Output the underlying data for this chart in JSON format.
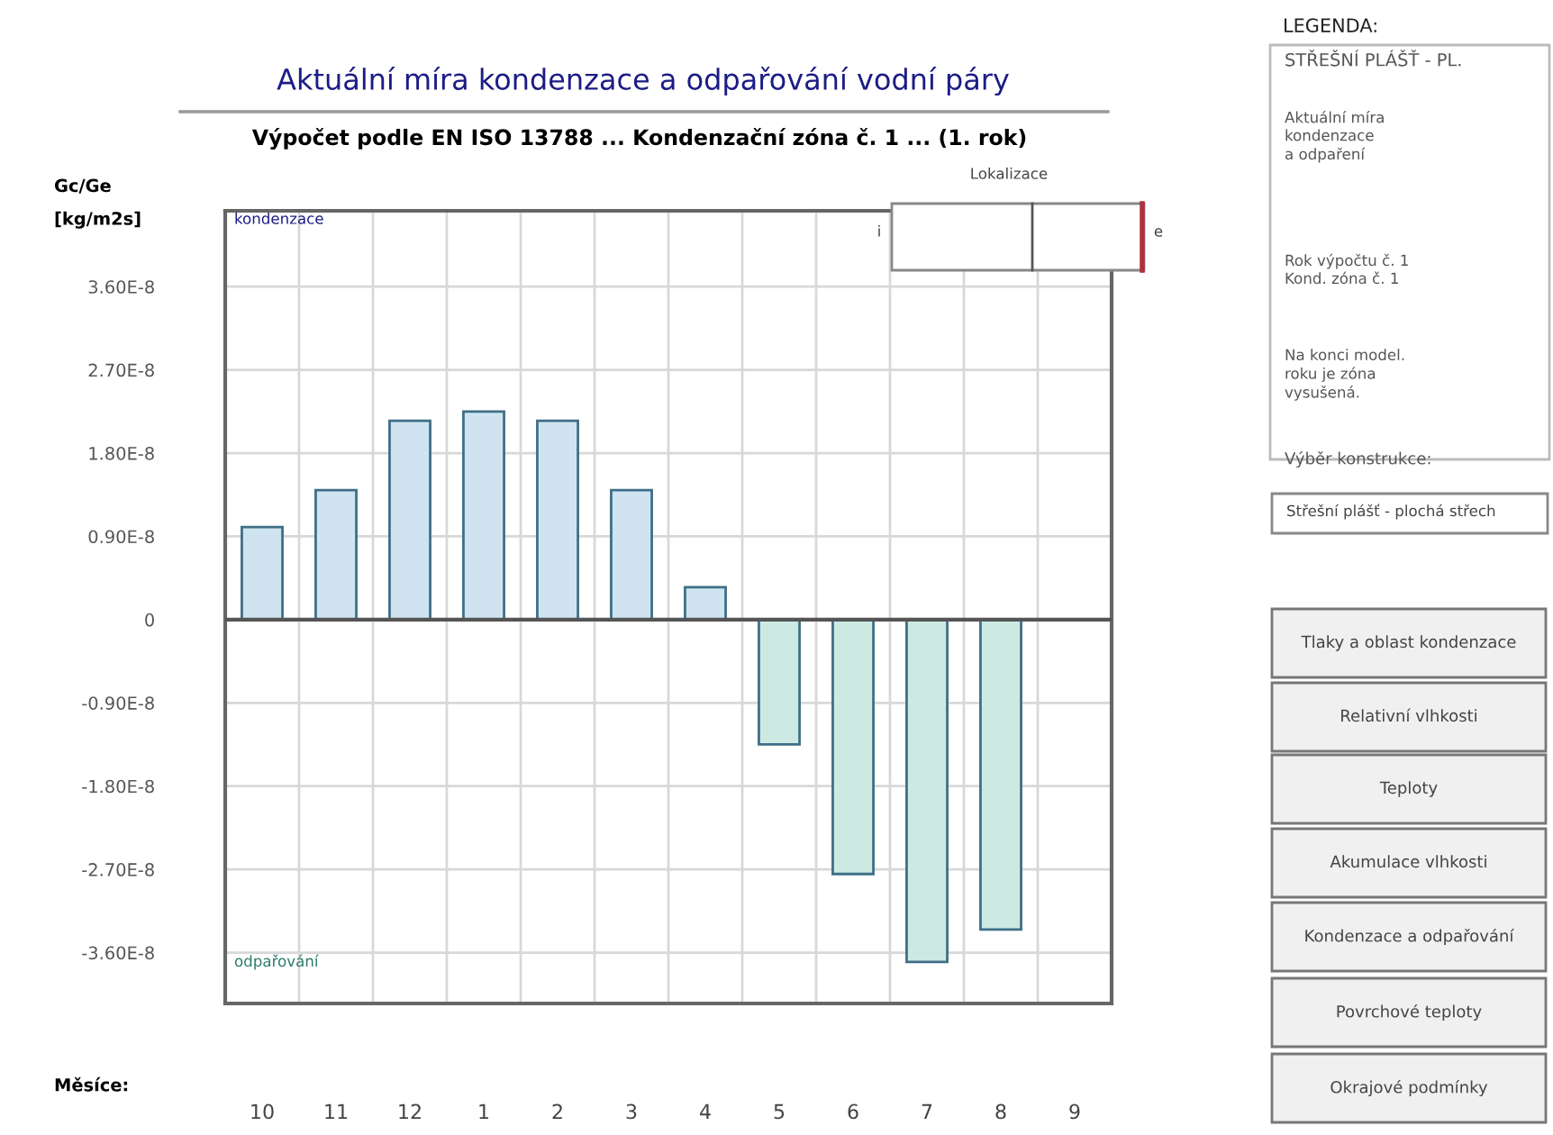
{
  "chart_data": {
    "type": "bar",
    "title": "Aktuální míra kondenzace a odpařování vodní páry",
    "subtitle": "Výpočet podle EN ISO 13788 ... Kondenzační zóna č. 1 ... (1. rok)",
    "xlabel": "Měsíce:",
    "ylabel": "Gc/Ge\n[kg/m2s]",
    "categories": [
      "10",
      "11",
      "12",
      "1",
      "2",
      "3",
      "4",
      "5",
      "6",
      "7",
      "8",
      "9"
    ],
    "values": [
      1e-08,
      1.4e-08,
      2.15e-08,
      2.25e-08,
      2.15e-08,
      1.4e-08,
      3.5e-09,
      -1.35e-08,
      -2.75e-08,
      -3.7e-08,
      -3.35e-08,
      null
    ],
    "colors": [
      "#cfe4f0",
      "#cfe4f0",
      "#cfe4f0",
      "#cfe4f0",
      "#cfe4f0",
      "#cfe4f0",
      "#cfe4f0",
      "#cdeae2",
      "#cdeae2",
      "#cdeae2",
      "#cdeae2",
      "#cdeae2"
    ],
    "ylim": [
      -4.15e-08,
      4.42e-08
    ],
    "yticks": [
      {
        "value": 3.6e-08,
        "label": "3.60E-8"
      },
      {
        "value": 2.7e-08,
        "label": "2.70E-8"
      },
      {
        "value": 1.8e-08,
        "label": "1.80E-8"
      },
      {
        "value": 9e-09,
        "label": "0.90E-8"
      },
      {
        "value": 0,
        "label": "0"
      },
      {
        "value": -9e-09,
        "label": "-0.90E-8"
      },
      {
        "value": -1.8e-08,
        "label": "-1.80E-8"
      },
      {
        "value": -2.7e-08,
        "label": "-2.70E-8"
      },
      {
        "value": -3.6e-08,
        "label": "-3.60E-8"
      }
    ],
    "grid": true,
    "annotations": [
      "kondenzace",
      "odpařování",
      "Lokalizace",
      "i",
      "e",
      "LEGENDA:",
      "STŘEŠNÍ PLÁŠŤ - PL.",
      "Aktuální míra\nkondenzace\na odpaření",
      "Rok výpočtu č. 1\nKond. zóna č. 1",
      "Na konci model.\nroku je zóna\nvysušená.",
      "Výběr konstrukce:",
      "Střešní plášť - plochá střech",
      "Tlaky a oblast kondenzace",
      "Relativní vlhkosti",
      "Teploty",
      "Akumulace vlhkosti",
      "Kondenzace a odpařování",
      "Povrchové teploty",
      "Okrajové podmínky"
    ]
  }
}
